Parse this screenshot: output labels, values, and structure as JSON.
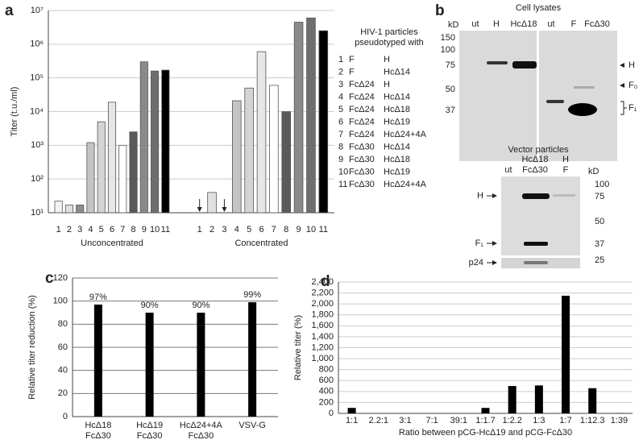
{
  "panel_labels": [
    "a",
    "b",
    "c",
    "d"
  ],
  "chart_data": [
    {
      "type": "bar",
      "log_scale": true,
      "ylabel": "Titer (t.u./ml)",
      "categories": [
        "1",
        "2",
        "3",
        "4",
        "5",
        "6",
        "7",
        "8",
        "9",
        "10",
        "11"
      ],
      "groups": [
        {
          "name": "Unconcentrated",
          "values": [
            22,
            17,
            17,
            1200,
            5000,
            19000,
            1000,
            2500,
            300000,
            160000,
            170000
          ]
        },
        {
          "name": "Concentrated",
          "values": [
            null,
            40,
            null,
            21000,
            50000,
            600000,
            60000,
            10000,
            4500000,
            6000000,
            2500000
          ]
        }
      ],
      "colors": [
        "#f2f2f2",
        "#e0e0e0",
        "#8c8c8c",
        "#c4c4c4",
        "#d4d4d4",
        "#e6e6e6",
        "#ffffff",
        "#5a5a5a",
        "#8a8a8a",
        "#6e6e6e",
        "#000000"
      ],
      "ylim": [
        10,
        10000000
      ],
      "yticks": [
        {
          "value": 10,
          "label": "10¹"
        },
        {
          "value": 100,
          "label": "10²"
        },
        {
          "value": 1000,
          "label": "10³"
        },
        {
          "value": 10000,
          "label": "10⁴"
        },
        {
          "value": 100000,
          "label": "10⁵"
        },
        {
          "value": 1000000,
          "label": "10⁶"
        },
        {
          "value": 10000000,
          "label": "10⁷"
        }
      ],
      "grid": true,
      "legend_title": [
        "HIV-1 particles",
        "pseudotyped with"
      ],
      "legend_rows": [
        [
          "1",
          "F",
          "H"
        ],
        [
          "2",
          "F",
          "HcΔ14"
        ],
        [
          "3",
          "FcΔ24",
          "H"
        ],
        [
          "4",
          "FcΔ24",
          "HcΔ14"
        ],
        [
          "5",
          "FcΔ24",
          "HcΔ18"
        ],
        [
          "6",
          "FcΔ24",
          "HcΔ19"
        ],
        [
          "7",
          "FcΔ24",
          "HcΔ24+4A"
        ],
        [
          "8",
          "FcΔ30",
          "HcΔ14"
        ],
        [
          "9",
          "FcΔ30",
          "HcΔ18"
        ],
        [
          "10",
          "FcΔ30",
          "HcΔ19"
        ],
        [
          "11",
          "FcΔ30",
          "HcΔ24+4A"
        ]
      ]
    },
    {
      "type": "bar",
      "ylabel": "Relative titer reduction (%)",
      "categories": [
        [
          "HcΔ18",
          "FcΔ30"
        ],
        [
          "HcΔ19",
          "FcΔ30"
        ],
        [
          "HcΔ24+4A",
          "FcΔ30"
        ],
        [
          "VSV-G"
        ]
      ],
      "values": [
        97,
        90,
        90,
        99
      ],
      "value_labels": [
        "97%",
        "90%",
        "90%",
        "99%"
      ],
      "color": "#000000",
      "ylim": [
        0,
        120
      ],
      "yticks": [
        0,
        20,
        40,
        60,
        80,
        100,
        120
      ],
      "grid": true
    },
    {
      "type": "bar",
      "ylabel": "Relative titer (%)",
      "xlabel": "Ratio between pCG-HcΔ19 and pCG-FcΔ30",
      "categories": [
        "1:1",
        "2.2:1",
        "3:1",
        "7:1",
        "39:1",
        "1:1.7",
        "1:2.2",
        "1:3",
        "1:7",
        "1:12.3",
        "1:39"
      ],
      "values": [
        100,
        0,
        0,
        0,
        0,
        100,
        500,
        510,
        2150,
        460,
        5
      ],
      "color": "#000000",
      "ylim": [
        0,
        2400
      ],
      "yticks": [
        0,
        200,
        400,
        600,
        800,
        {
          "value": 1000,
          "label": "1,000"
        },
        {
          "value": 1200,
          "label": "1,200"
        },
        {
          "value": 1400,
          "label": "1,400"
        },
        {
          "value": 1600,
          "label": "1,600"
        },
        {
          "value": 1800,
          "label": "1,800"
        },
        {
          "value": 2000,
          "label": "2,000"
        },
        {
          "value": 2200,
          "label": "2,200"
        },
        {
          "value": 2400,
          "label": "2,400"
        }
      ],
      "grid": true
    }
  ],
  "blots": {
    "top": {
      "title": "Cell lysates",
      "unit": "kD",
      "lanes": [
        "ut",
        "H",
        "HcΔ18",
        "ut",
        "F",
        "FcΔ30"
      ],
      "markers": [
        150,
        100,
        75,
        50,
        37
      ],
      "bands": [
        "H",
        "F₀",
        "F₁"
      ]
    },
    "bottom": {
      "title": "Vector particles",
      "unit": "kD",
      "lanes": [
        [
          "ut"
        ],
        [
          "HcΔ18",
          "FcΔ30"
        ],
        [
          "H",
          "F"
        ]
      ],
      "markers": [
        100,
        75,
        50,
        37,
        25
      ],
      "bands": [
        "H",
        "F₁",
        "p24"
      ]
    }
  }
}
